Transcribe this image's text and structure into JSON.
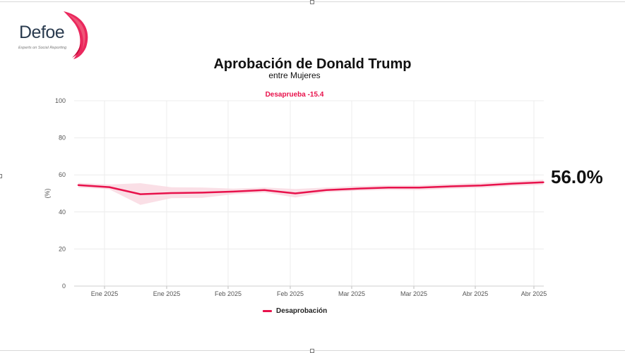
{
  "logo": {
    "name": "Defoe",
    "tagline": "Experts on Social Reporting"
  },
  "header": {
    "title": "Aprobación de Donald Trump",
    "subtitle": "entre Mujeres"
  },
  "latest_value_label": "56.0%",
  "colors": {
    "series": "#e8114b",
    "band": "#fadbe3",
    "grid": "#ececec"
  },
  "chart_data": {
    "type": "line",
    "title": "Desaprueba -15.4",
    "ylabel": "(%)",
    "ylim": [
      0,
      100
    ],
    "yticks": [
      0,
      20,
      40,
      60,
      80,
      100
    ],
    "grid": true,
    "legend_position": "bottom",
    "x_tick_labels": [
      "Ene 2025",
      "Ene 2025",
      "Feb 2025",
      "Feb 2025",
      "Mar 2025",
      "Mar 2025",
      "Abr 2025",
      "Abr 2025"
    ],
    "x_index_range": [
      0,
      14.9
    ],
    "series": [
      {
        "name": "Desaprobación",
        "x": [
          0,
          1,
          2,
          3,
          4,
          5,
          6,
          7,
          8,
          9,
          10,
          11,
          12,
          13,
          14,
          15
        ],
        "values": [
          54.5,
          53.4,
          49.6,
          50.2,
          50.4,
          51.0,
          51.8,
          50.0,
          51.8,
          52.6,
          53.1,
          53.1,
          53.8,
          54.3,
          55.3,
          56.0
        ],
        "lower": [
          53.2,
          52.2,
          43.8,
          47.4,
          47.6,
          49.5,
          50.5,
          47.8,
          50.6,
          51.4,
          51.9,
          51.8,
          52.5,
          53.0,
          54.0,
          54.6
        ],
        "upper": [
          55.7,
          54.8,
          55.5,
          53.3,
          53.2,
          52.6,
          53.2,
          52.4,
          53.2,
          54.0,
          54.4,
          54.4,
          55.1,
          55.7,
          56.6,
          57.4
        ]
      }
    ]
  }
}
